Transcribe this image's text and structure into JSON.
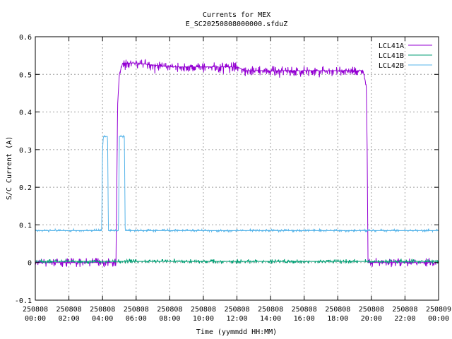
{
  "chart_data": {
    "type": "line",
    "title": "Currents for MEX",
    "subtitle": "E_SC20250808000000.sfduZ",
    "xlabel": "Time (yymmdd HH:MM)",
    "ylabel": "S/C Current (A)",
    "ylim": [
      -0.1,
      0.6
    ],
    "yticks": [
      -0.1,
      0,
      0.1,
      0.2,
      0.3,
      0.4,
      0.5,
      0.6
    ],
    "ytick_labels": [
      "-0.1",
      "0",
      "0.1",
      "0.2",
      "0.3",
      "0.4",
      "0.5",
      "0.6"
    ],
    "xlim_hours": [
      0,
      24
    ],
    "xticks": [
      {
        "h": 0,
        "date": "250808",
        "time": "00:00"
      },
      {
        "h": 2,
        "date": "250808",
        "time": "02:00"
      },
      {
        "h": 4,
        "date": "250808",
        "time": "04:00"
      },
      {
        "h": 6,
        "date": "250808",
        "time": "06:00"
      },
      {
        "h": 8,
        "date": "250808",
        "time": "08:00"
      },
      {
        "h": 10,
        "date": "250808",
        "time": "10:00"
      },
      {
        "h": 12,
        "date": "250808",
        "time": "12:00"
      },
      {
        "h": 14,
        "date": "250808",
        "time": "14:00"
      },
      {
        "h": 16,
        "date": "250808",
        "time": "16:00"
      },
      {
        "h": 18,
        "date": "250808",
        "time": "18:00"
      },
      {
        "h": 20,
        "date": "250808",
        "time": "20:00"
      },
      {
        "h": 22,
        "date": "250808",
        "time": "22:00"
      },
      {
        "h": 24,
        "date": "250809",
        "time": "00:00"
      }
    ],
    "grid": true,
    "legend_position": "top-right",
    "series": [
      {
        "name": "LCL41A",
        "color": "#9400d3",
        "x_hours": [
          0,
          4.8,
          4.85,
          4.9,
          5.0,
          5.2,
          6.0,
          7.0,
          8.0,
          10.0,
          12.0,
          12.5,
          14.0,
          16.0,
          18.0,
          19.5,
          19.7,
          19.75,
          19.8,
          19.85,
          22.0,
          24.0
        ],
        "y": [
          0.0,
          0.0,
          0.2,
          0.42,
          0.5,
          0.53,
          0.53,
          0.525,
          0.52,
          0.52,
          0.52,
          0.51,
          0.51,
          0.51,
          0.51,
          0.51,
          0.47,
          0.3,
          0.0,
          0.0,
          0.0,
          0.0
        ]
      },
      {
        "name": "LCL41B",
        "color": "#009e73",
        "x_hours": [
          0,
          6,
          12,
          18,
          24
        ],
        "y": [
          0.003,
          0.003,
          0.003,
          0.003,
          0.003
        ]
      },
      {
        "name": "LCL42B",
        "color": "#56b4e9",
        "x_hours": [
          0,
          3.95,
          4.0,
          4.05,
          4.3,
          4.35,
          4.45,
          4.6,
          4.65,
          4.95,
          5.0,
          5.3,
          5.35,
          24.0
        ],
        "y": [
          0.085,
          0.085,
          0.3,
          0.335,
          0.335,
          0.085,
          0.085,
          0.085,
          0.085,
          0.085,
          0.335,
          0.335,
          0.085,
          0.085
        ]
      }
    ]
  }
}
